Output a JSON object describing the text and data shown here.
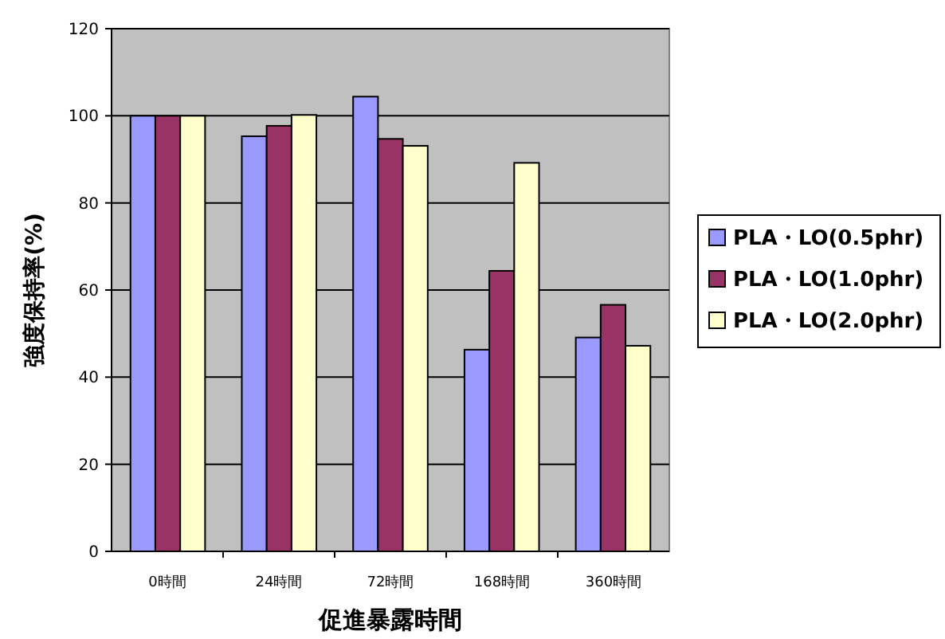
{
  "chart_data": {
    "type": "bar",
    "xlabel": "促進暴露時間",
    "ylabel": "強度保持率(%)",
    "categories": [
      "0時間",
      "24時間",
      "72時間",
      "168時間",
      "360時間"
    ],
    "series": [
      {
        "name": "PLA・LO(0.5phr)",
        "color": "#9999ff",
        "values": [
          100,
          95.3,
          104.4,
          46.3,
          49.1
        ]
      },
      {
        "name": "PLA・LO(1.0phr)",
        "color": "#993366",
        "values": [
          100,
          97.7,
          94.7,
          64.4,
          56.6
        ]
      },
      {
        "name": "PLA・LO(2.0phr)",
        "color": "#ffffcc",
        "values": [
          100,
          100.2,
          93.1,
          89.2,
          47.2
        ]
      }
    ],
    "ylim": [
      0,
      120
    ],
    "yticks": [
      0,
      20,
      40,
      60,
      80,
      100,
      120
    ],
    "grid": "y",
    "legend": "right"
  }
}
